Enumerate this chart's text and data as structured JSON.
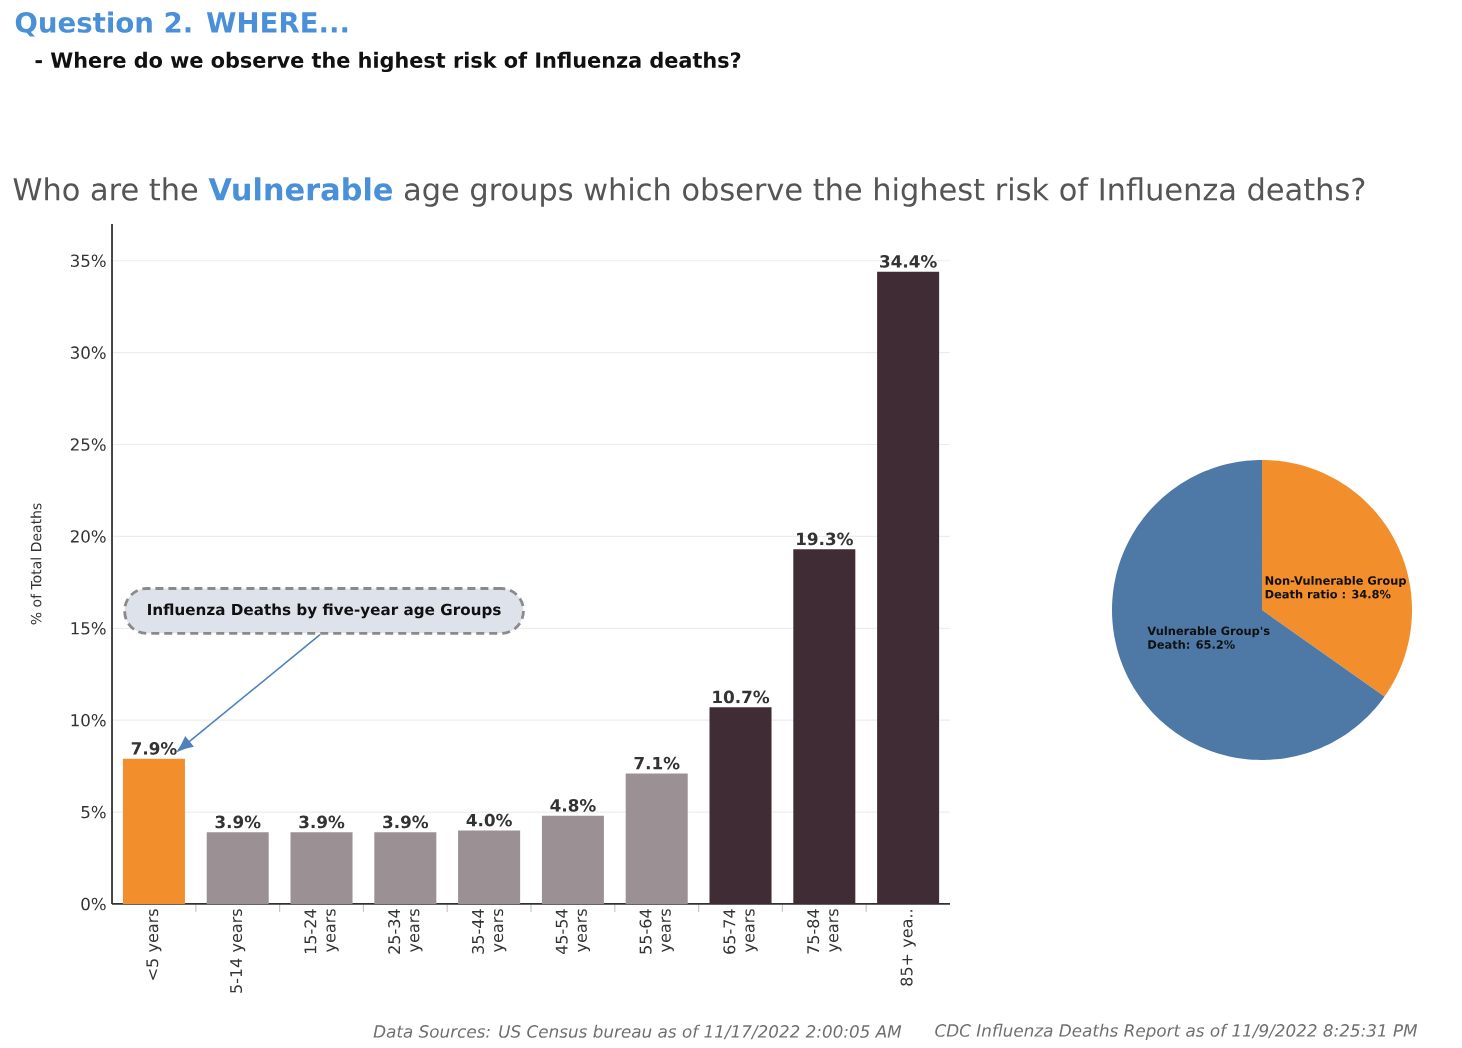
{
  "chart_data": [
    {
      "type": "bar",
      "title": "Who are the **Vulnerable** age groups which observe the highest risk of Influenza deaths?",
      "ylabel": "% of Total Deaths",
      "categories": [
        "<5 years",
        "5-14 years",
        "15-24 years",
        "25-34 years",
        "35-44 years",
        "45-54 years",
        "55-64 years",
        "65-74 years",
        "75-84 years",
        "85+ yea.."
      ],
      "values": [
        7.9,
        3.9,
        3.9,
        3.9,
        4.0,
        4.8,
        7.1,
        10.7,
        19.3,
        34.4
      ],
      "colors": [
        "#f28e2b",
        "#9b9194",
        "#9b9194",
        "#9b9194",
        "#9b9194",
        "#9b9194",
        "#9b9194",
        "#3f2c35",
        "#3f2c35",
        "#3f2c35"
      ],
      "value_labels": [
        "7.9%",
        "3.9%",
        "3.9%",
        "3.9%",
        "4.0%",
        "4.8%",
        "7.1%",
        "10.7%",
        "19.3%",
        "34.4%"
      ],
      "ylim": [
        0,
        37
      ],
      "yticks": [
        {
          "value": 0,
          "label": "0%"
        },
        {
          "value": 5,
          "label": "5%"
        },
        {
          "value": 10,
          "label": "10%"
        },
        {
          "value": 15,
          "label": "15%"
        },
        {
          "value": 20,
          "label": "20%"
        },
        {
          "value": 25,
          "label": "25%"
        },
        {
          "value": 30,
          "label": "30%"
        },
        {
          "value": 35,
          "label": "35%"
        }
      ],
      "grid": "y",
      "annotations": [
        "Question 2. WHERE...",
        "- Where do we observe the highest risk of Influenza deaths?",
        "Influenza Deaths by five-year age Groups",
        "Data Sources: US Census bureau as of 11/17/2022 2:00:05 AM",
        "CDC Influenza Deaths Report as of 11/9/2022 8:25:31 PM"
      ]
    },
    {
      "type": "pie",
      "categories": [
        "Non-Vulnerable Group",
        "Vulnerable Group's"
      ],
      "values": [
        34.8,
        65.2
      ],
      "colors": [
        "#f28e2b",
        "#4e79a7"
      ],
      "value_labels": [
        "Death ratio : 34.8%",
        "Death: 65.2%"
      ]
    }
  ]
}
